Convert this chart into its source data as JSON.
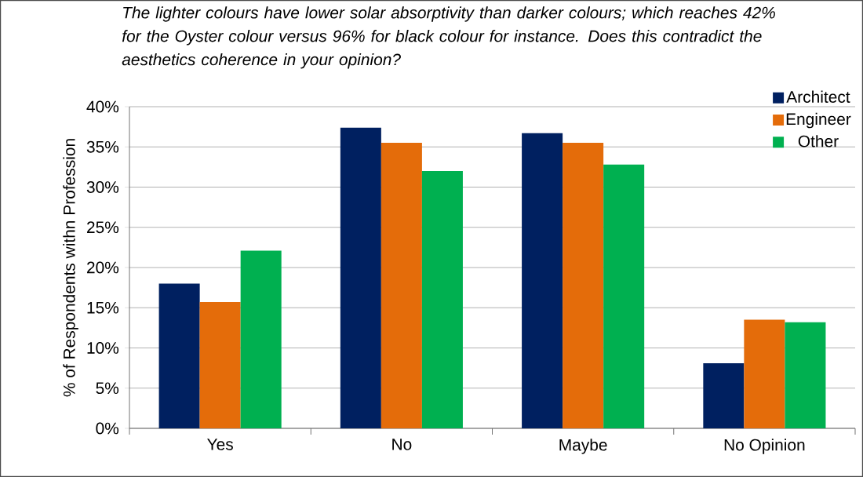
{
  "chart_data": {
    "type": "bar",
    "title": "The lighter colours have lower solar absorptivity than darker colours; which reaches 42% for the Oyster colour versus 96% for black colour for instance. Does this contradict the aesthetics coherence in your opinion?",
    "ylabel": "% of Respondents withn Profession",
    "categories": [
      "Yes",
      "No",
      "Maybe",
      "No Opinion"
    ],
    "series": [
      {
        "name": "Architect",
        "color": "#002060",
        "values": [
          18,
          37.4,
          36.7,
          8.1
        ]
      },
      {
        "name": "Engineer",
        "color": "#e46c0a",
        "values": [
          15.7,
          35.5,
          35.5,
          13.5
        ]
      },
      {
        "name": "Other",
        "color": "#00b050",
        "values": [
          22.1,
          32.0,
          32.8,
          13.2
        ]
      }
    ],
    "ylim": [
      0,
      40
    ],
    "yticks": [
      {
        "value": 0,
        "label": "0%"
      },
      {
        "value": 5,
        "label": "5%"
      },
      {
        "value": 10,
        "label": "10%"
      },
      {
        "value": 15,
        "label": "15%"
      },
      {
        "value": 20,
        "label": "20%"
      },
      {
        "value": 25,
        "label": "25%"
      },
      {
        "value": 30,
        "label": "30%"
      },
      {
        "value": 35,
        "label": "35%"
      },
      {
        "value": 40,
        "label": "40%"
      }
    ],
    "grid": "y",
    "legend": "top right"
  }
}
